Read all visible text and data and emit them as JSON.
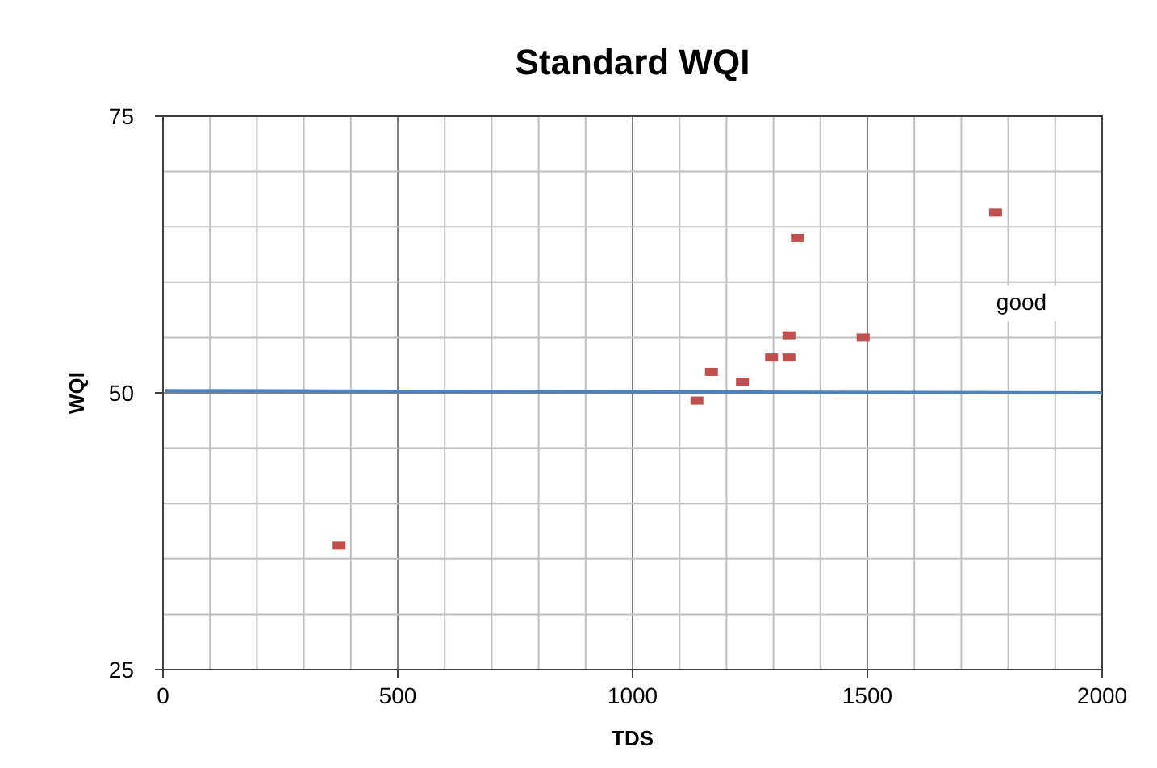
{
  "chart_data": {
    "type": "scatter",
    "title": "Standard WQI",
    "xlabel": "TDS",
    "ylabel": "WQI",
    "xlim": [
      0,
      2000
    ],
    "ylim": [
      25,
      75
    ],
    "xticks": [
      0,
      {
        "value": 100,
        "label": null
      },
      {
        "value": 200,
        "label": null
      },
      {
        "value": 300,
        "label": null
      },
      {
        "value": 400,
        "label": null
      },
      500,
      {
        "value": 600,
        "label": null
      },
      {
        "value": 700,
        "label": null
      },
      {
        "value": 800,
        "label": null
      },
      {
        "value": 900,
        "label": null
      },
      1000,
      {
        "value": 1100,
        "label": null
      },
      {
        "value": 1200,
        "label": null
      },
      {
        "value": 1300,
        "label": null
      },
      {
        "value": 1400,
        "label": null
      },
      1500,
      {
        "value": 1600,
        "label": null
      },
      {
        "value": 1700,
        "label": null
      },
      {
        "value": 1800,
        "label": null
      },
      {
        "value": 1900,
        "label": null
      },
      2000
    ],
    "yticks": [
      25,
      {
        "value": 30,
        "label": null
      },
      {
        "value": 35,
        "label": null
      },
      {
        "value": 40,
        "label": null
      },
      {
        "value": 45,
        "label": null
      },
      50,
      {
        "value": 55,
        "label": null
      },
      {
        "value": 60,
        "label": null
      },
      {
        "value": 65,
        "label": null
      },
      {
        "value": 70,
        "label": null
      },
      75
    ],
    "grid": true,
    "annotations": [
      "good"
    ],
    "series": [
      {
        "marker": "square",
        "color": "#c0504d",
        "x": [
          375,
          1137,
          1168,
          1234,
          1296,
          1333,
          1333,
          1351,
          1491,
          1773
        ],
        "values": [
          36.2,
          49.3,
          51.9,
          51.0,
          53.2,
          53.2,
          55.2,
          64.0,
          55.0,
          66.3
        ]
      },
      {
        "type": "line",
        "color": "#4f81bd",
        "x": [
          5,
          2000
        ],
        "values": [
          50.2,
          50.0
        ]
      }
    ]
  }
}
